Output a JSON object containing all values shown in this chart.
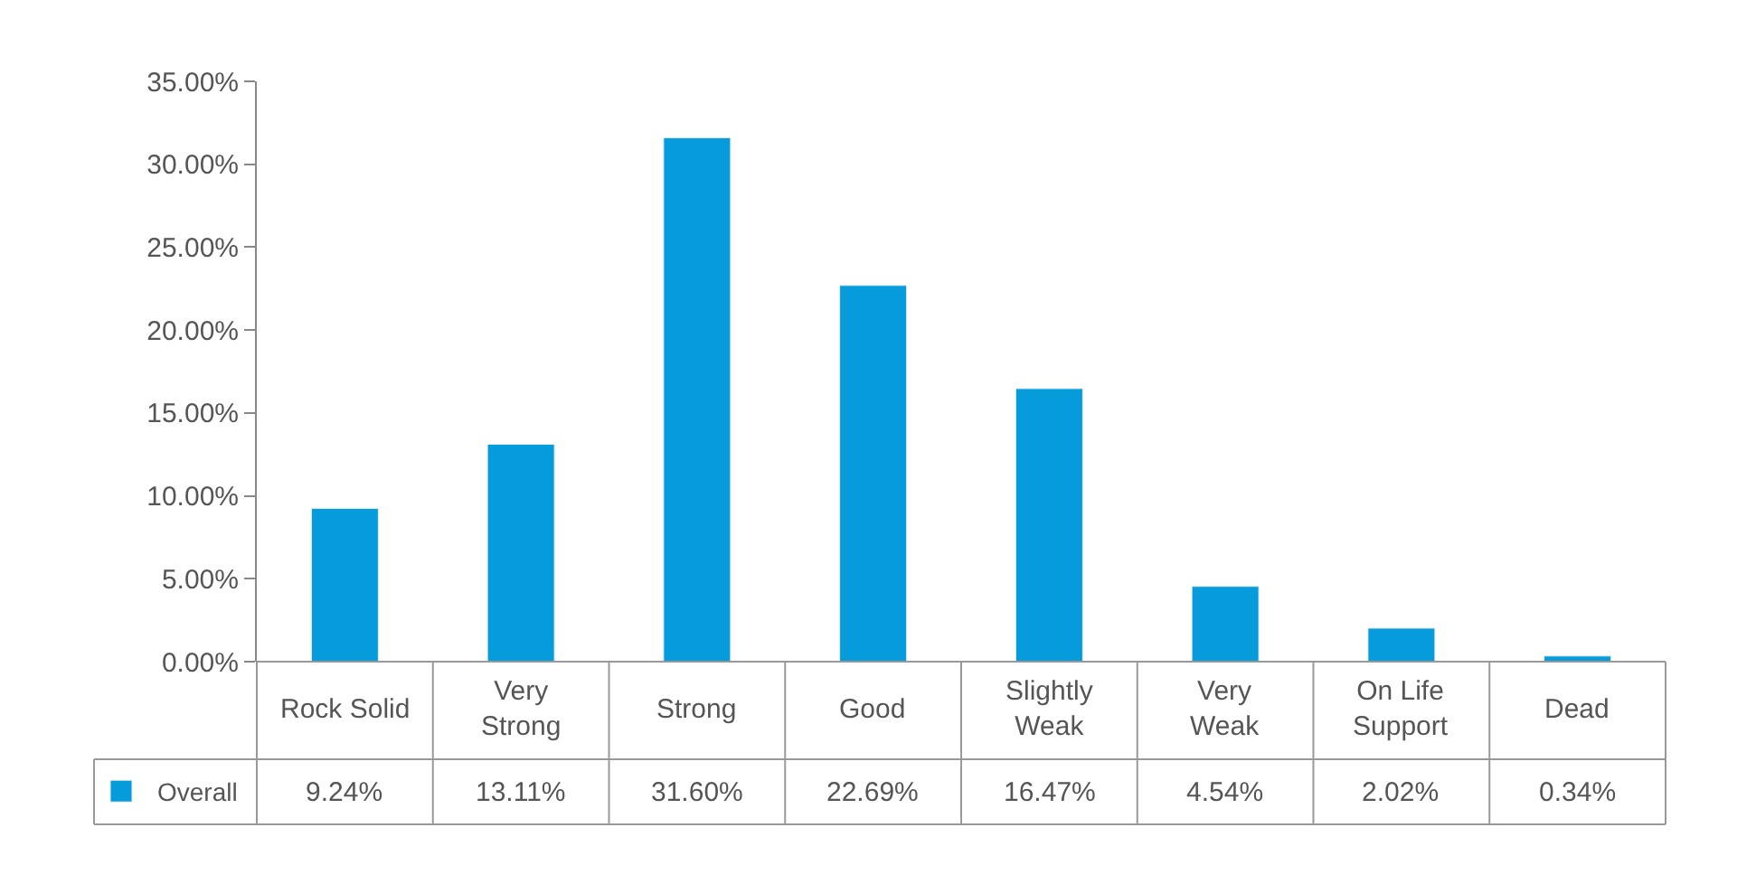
{
  "chart_data": {
    "type": "bar",
    "categories": [
      "Rock Solid",
      "Very\nStrong",
      "Strong",
      "Good",
      "Slightly\nWeak",
      "Very\nWeak",
      "On Life\nSupport",
      "Dead"
    ],
    "series": [
      {
        "name": "Overall",
        "color": "#069cdb",
        "values": [
          9.24,
          13.11,
          31.6,
          22.69,
          16.47,
          4.54,
          2.02,
          0.34
        ],
        "value_labels": [
          "9.24%",
          "13.11%",
          "31.60%",
          "22.69%",
          "16.47%",
          "4.54%",
          "2.02%",
          "0.34%"
        ]
      }
    ],
    "ylim": [
      0,
      35
    ],
    "yticks": [
      {
        "value": 0,
        "label": "0.00%"
      },
      {
        "value": 5,
        "label": "5.00%"
      },
      {
        "value": 10,
        "label": "10.00%"
      },
      {
        "value": 15,
        "label": "15.00%"
      },
      {
        "value": 20,
        "label": "20.00%"
      },
      {
        "value": 25,
        "label": "25.00%"
      },
      {
        "value": 30,
        "label": "30.00%"
      },
      {
        "value": 35,
        "label": "35.00%"
      }
    ],
    "legend": "bottom left"
  }
}
